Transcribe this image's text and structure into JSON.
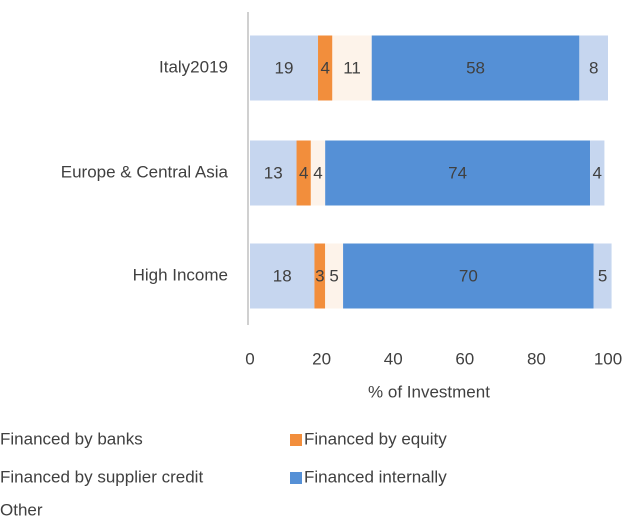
{
  "chart_data": {
    "type": "stacked-barh",
    "xlabel": "% of Investment",
    "categories": [
      "Italy2019",
      "Europe & Central Asia",
      "High Income"
    ],
    "series": [
      {
        "name": "Financed by banks",
        "color": "#c6d6ef",
        "values": [
          19,
          13,
          18
        ]
      },
      {
        "name": "Financed by equity",
        "color": "#f28e3c",
        "values": [
          4,
          4,
          3
        ]
      },
      {
        "name": "Financed by supplier credit",
        "color": "#fdf3ea",
        "values": [
          11,
          4,
          5
        ]
      },
      {
        "name": "Financed internally",
        "color": "#5590d6",
        "values": [
          58,
          74,
          70
        ]
      },
      {
        "name": "Other",
        "color": "#c6d6ef",
        "values": [
          8,
          4,
          5
        ]
      }
    ],
    "xlim": [
      0,
      100
    ],
    "xticks": [
      0,
      20,
      40,
      60,
      80,
      100
    ]
  }
}
